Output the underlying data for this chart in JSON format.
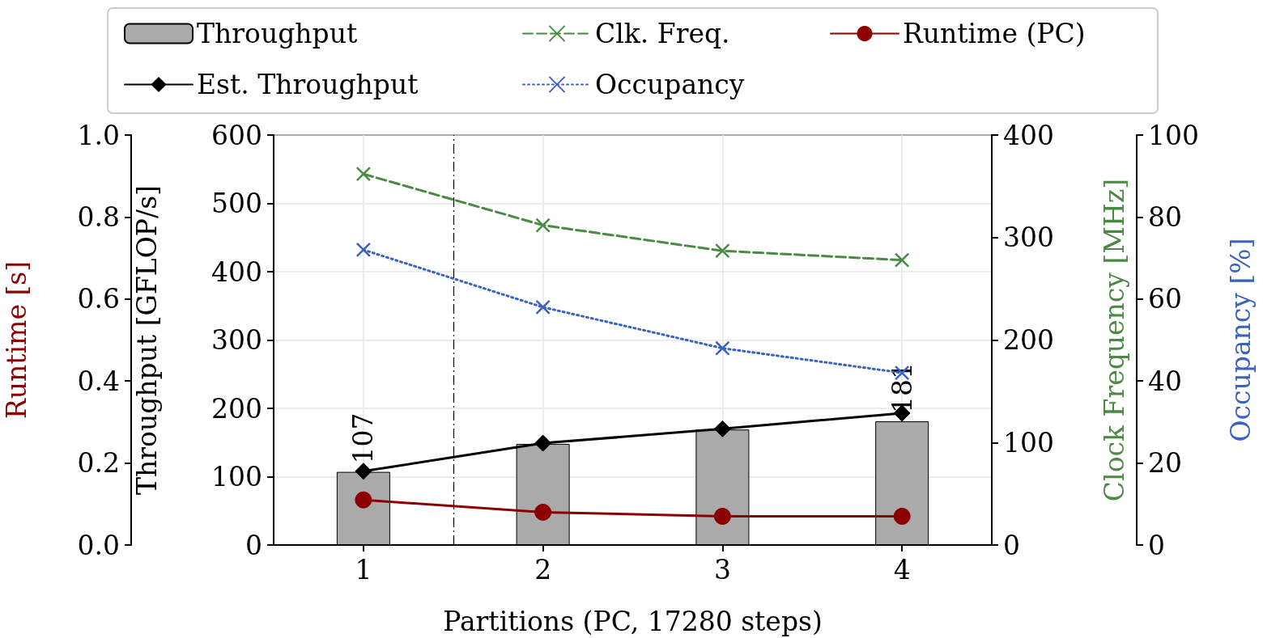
{
  "chart_data": [
    {
      "type": "bar",
      "xlabel": "Partitions (PC, 17280 steps)",
      "ylabel": "Throughput [GFLOP/s]",
      "y2label": "Clock Frequency [MHz]",
      "y3label": "Occupancy [%]",
      "x": [
        1,
        2,
        3,
        4
      ],
      "xlim": [
        0.5,
        4.5
      ],
      "xticks": [
        1,
        2,
        3,
        4
      ],
      "ylim": [
        0,
        600
      ],
      "yticks": [
        0,
        100,
        200,
        300,
        400,
        500,
        600
      ],
      "y2lim": [
        0,
        400
      ],
      "y2ticks": [
        0,
        100,
        200,
        300,
        400
      ],
      "y3lim": [
        0,
        100
      ],
      "y3ticks": [
        0,
        20,
        40,
        60,
        80,
        100
      ],
      "series": [
        {
          "name": "Throughput",
          "color": "#aaaaaa",
          "values": [
            107,
            148,
            169,
            181
          ],
          "value_labels": [
            "107",
            null,
            null,
            "181"
          ]
        },
        {
          "name": "Est. Throughput",
          "type": "line",
          "color": "#000000",
          "marker": "diamond",
          "line_style": "solid",
          "values": [
            108,
            149,
            170,
            193
          ]
        },
        {
          "name": "Clk. Freq.",
          "type": "line",
          "axis": "y2",
          "color": "#4a8a44",
          "marker": "cross",
          "line_style": "dashed",
          "values": [
            362,
            312,
            287,
            278
          ]
        },
        {
          "name": "Occupancy",
          "type": "line",
          "axis": "y3",
          "color": "#3a62c0",
          "marker": "cross",
          "line_style": "dotted",
          "values": [
            72,
            58,
            48,
            42
          ]
        }
      ],
      "ref_lines": [
        {
          "axis": "x",
          "value": 1.5,
          "color": "#000000",
          "line_style": "dashdot"
        }
      ],
      "grid": true,
      "legend": "top"
    },
    {
      "type": "line",
      "ylabel": "Runtime [s]",
      "x": [
        1,
        2,
        3,
        4
      ],
      "xlim": [
        0.5,
        4.5
      ],
      "xticks": [
        1,
        2,
        3,
        4
      ],
      "tick_labels": "y",
      "ylim": [
        0,
        1
      ],
      "yticks": [
        {
          "value": 0,
          "label": "0.0"
        },
        {
          "value": 0.2,
          "label": "0.2"
        },
        {
          "value": 0.4,
          "label": "0.4"
        },
        {
          "value": 0.6,
          "label": "0.6"
        },
        {
          "value": 0.8,
          "label": "0.8"
        },
        {
          "value": 1,
          "label": "1.0"
        }
      ],
      "series": [
        {
          "name": "Runtime (PC)",
          "color": "#8b0000",
          "marker": "circle",
          "line_style": "solid",
          "values": [
            0.11,
            0.08,
            0.07,
            0.07
          ]
        }
      ],
      "legend": "top"
    }
  ]
}
